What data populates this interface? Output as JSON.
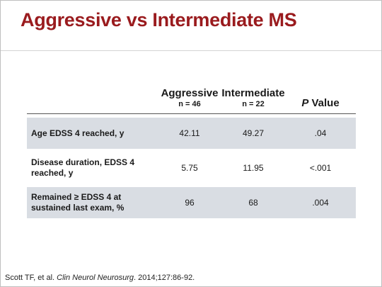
{
  "slide": {
    "title": "Aggressive vs Intermediate MS"
  },
  "table": {
    "headers": {
      "aggressive": "Aggressive",
      "aggressive_n": "n = 46",
      "intermediate": "Intermediate",
      "intermediate_n": "n = 22",
      "p_letter": "P",
      "p_word": " Value"
    },
    "rows": [
      {
        "label": "Age EDSS 4 reached, y",
        "aggressive": "42.11",
        "intermediate": "49.27",
        "p": ".04"
      },
      {
        "label_line1": "Disease duration, EDSS 4",
        "label_line2": "reached, y",
        "aggressive": "5.75",
        "intermediate": "11.95",
        "p": "<.001"
      },
      {
        "label_line1": "Remained ≥ EDSS 4 at",
        "label_line2": "sustained last exam, %",
        "aggressive": "96",
        "intermediate": "68",
        "p": ".004"
      }
    ]
  },
  "citation": {
    "prefix": "Scott TF, et al. ",
    "journal": "Clin Neurol Neurosurg",
    "suffix": ". 2014;127:86-92."
  },
  "colors": {
    "title": "#9a1b1e",
    "row_shading": "#d9dde3"
  }
}
